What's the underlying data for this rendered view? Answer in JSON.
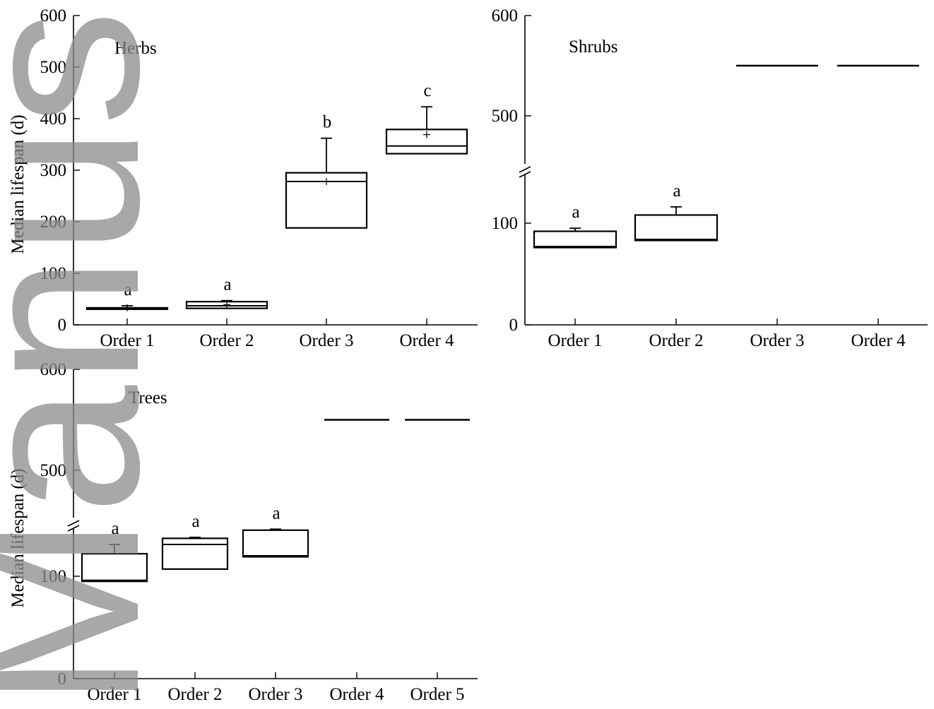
{
  "watermark": "Manuscript",
  "chart_data": [
    {
      "type": "box",
      "title": "Herbs",
      "ylabel": "Median lifespan (d)",
      "ylim": [
        0,
        600
      ],
      "yticks": [
        "0",
        "100",
        "200",
        "300",
        "400",
        "500",
        "600"
      ],
      "categories": [
        "Order 1",
        "Order 2",
        "Order 3",
        "Order 4"
      ],
      "boxes": [
        {
          "q1": 31,
          "median": 32,
          "q3": 33,
          "whisker": 37,
          "mean": 33,
          "letter": "a"
        },
        {
          "q1": 32,
          "median": 37,
          "q3": 45,
          "whisker": 47,
          "mean": 39,
          "letter": "a"
        },
        {
          "q1": 188,
          "median": 278,
          "q3": 295,
          "whisker": 362,
          "mean": 278,
          "letter": "b"
        },
        {
          "q1": 332,
          "median": 347,
          "q3": 379,
          "whisker": 423,
          "mean": 369,
          "letter": "c"
        }
      ]
    },
    {
      "type": "box",
      "title": "Shrubs",
      "ylabel": "",
      "axis_break": true,
      "yticks": [
        "0",
        "100",
        "500",
        "600"
      ],
      "categories": [
        "Order 1",
        "Order 2",
        "Order 3",
        "Order 4"
      ],
      "boxes": [
        {
          "q1": 76,
          "median": 77,
          "q3": 92,
          "whisker": 95,
          "letter": "a"
        },
        {
          "q1": 83,
          "median": 84,
          "q3": 108,
          "whisker": 116,
          "letter": "a"
        },
        {
          "line": 550,
          "letter": ""
        },
        {
          "line": 550,
          "letter": ""
        }
      ]
    },
    {
      "type": "box",
      "title": "Trees",
      "ylabel": "Median lifespan (d)",
      "axis_break": true,
      "yticks": [
        "0",
        "100",
        "500",
        "600"
      ],
      "categories": [
        "Order 1",
        "Order 2",
        "Order 3",
        "Order 4",
        "Order 5"
      ],
      "boxes": [
        {
          "q1": 95,
          "median": 96,
          "q3": 122,
          "whisker": 131,
          "letter": "a"
        },
        {
          "q1": 107,
          "median": 131,
          "q3": 137,
          "whisker": 138,
          "letter": "a"
        },
        {
          "q1": 119,
          "median": 120,
          "q3": 145,
          "whisker": 146,
          "letter": "a"
        },
        {
          "line": 550,
          "letter": ""
        },
        {
          "line": 550,
          "letter": ""
        }
      ]
    }
  ]
}
